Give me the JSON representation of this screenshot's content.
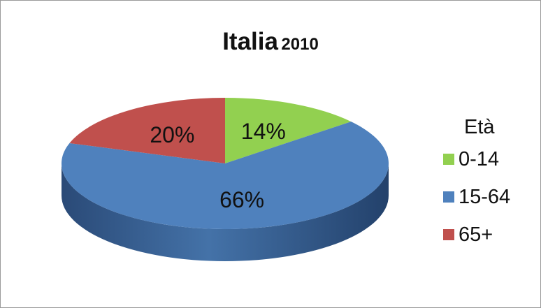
{
  "chart_data": {
    "type": "pie",
    "title": "Italia",
    "subtitle": "2010",
    "legend_title": "Età",
    "legend_position": "right",
    "categories": [
      "0-14",
      "15-64",
      "65+"
    ],
    "values": [
      14,
      66,
      20
    ],
    "value_labels": [
      "14%",
      "66%",
      "20%"
    ],
    "colors": [
      "#92d050",
      "#4f81bd",
      "#c0504d"
    ],
    "style": "3d"
  }
}
